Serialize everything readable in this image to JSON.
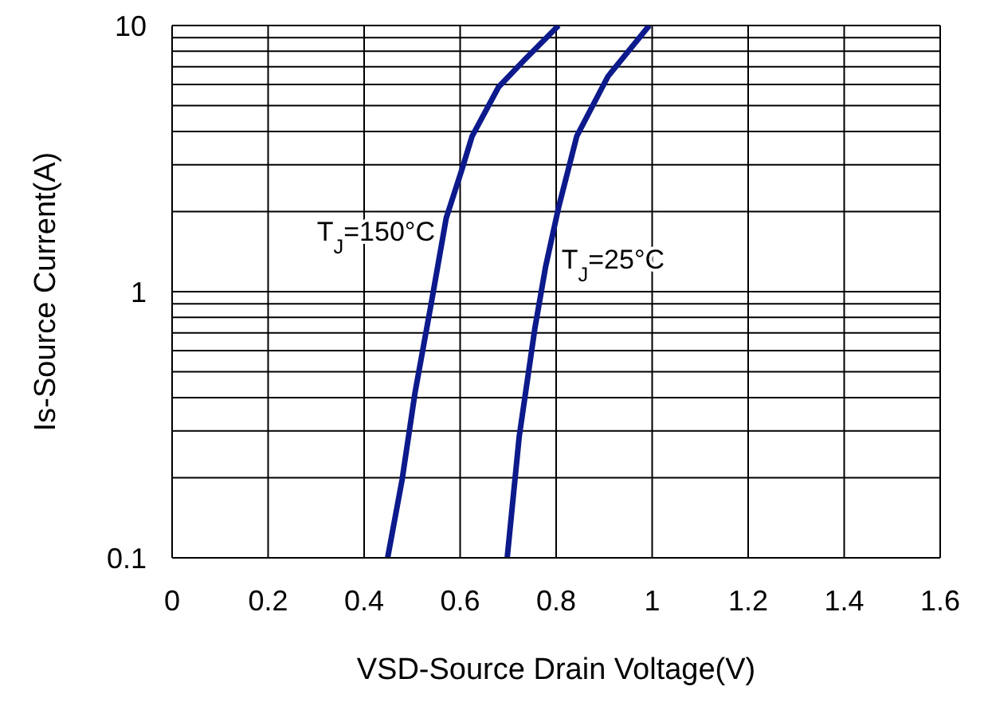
{
  "chart_data": {
    "type": "line",
    "xlabel": "VSD-Source Drain Voltage(V)",
    "ylabel": "Is-Source Current(A)",
    "log": "y",
    "grid": true,
    "marker": "none",
    "line_style": "solid",
    "xlim": [
      0,
      1.6
    ],
    "xticks": [
      0,
      0.2,
      0.4,
      0.6,
      0.8,
      1,
      1.2,
      1.4,
      1.6
    ],
    "ylim": [
      0.1,
      10
    ],
    "yticks": [
      0.1,
      {
        "value": 0.2,
        "label": null
      },
      {
        "value": 0.3,
        "label": null
      },
      {
        "value": 0.4,
        "label": null
      },
      {
        "value": 0.5,
        "label": null
      },
      {
        "value": 0.6,
        "label": null
      },
      {
        "value": 0.7,
        "label": null
      },
      {
        "value": 0.8,
        "label": null
      },
      {
        "value": 0.9,
        "label": null
      },
      1,
      {
        "value": 2,
        "label": null
      },
      {
        "value": 3,
        "label": null
      },
      {
        "value": 4,
        "label": null
      },
      {
        "value": 5,
        "label": null
      },
      {
        "value": 6,
        "label": null
      },
      {
        "value": 7,
        "label": null
      },
      {
        "value": 8,
        "label": null
      },
      {
        "value": 9,
        "label": null
      },
      10
    ],
    "series": [
      {
        "name": "T$_{J}$=150°C",
        "color": "#0d1a8c",
        "x": [
          0.449,
          0.479,
          0.506,
          0.539,
          0.571,
          0.604,
          0.625,
          0.68,
          0.734,
          0.805
        ],
        "values": [
          0.1,
          0.196,
          0.417,
          0.887,
          1.89,
          2.89,
          3.84,
          5.87,
          7.43,
          10
        ]
      },
      {
        "name": "T$_{J}$=25°C",
        "color": "#0d1a8c",
        "x": [
          0.698,
          0.723,
          0.756,
          0.778,
          0.805,
          0.843,
          0.908,
          0.994
        ],
        "values": [
          0.1,
          0.285,
          0.734,
          1.24,
          2.07,
          3.84,
          6.44,
          10
        ]
      }
    ]
  }
}
